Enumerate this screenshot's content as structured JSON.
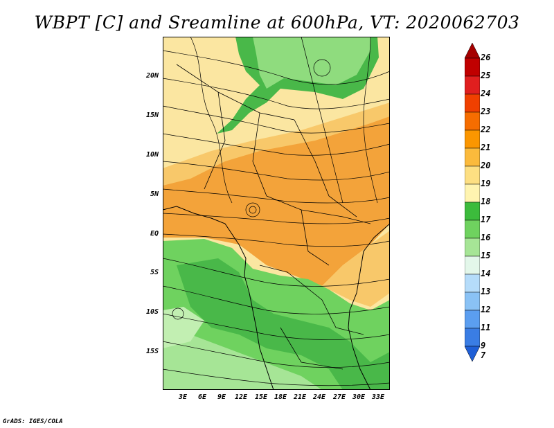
{
  "title": "WBPT [C] and Sreamline at 600hPa, VT: 2020062703",
  "footer": "GrADS: IGES/COLA",
  "lat_labels": [
    "20N",
    "15N",
    "10N",
    "5N",
    "EQ",
    "5S",
    "10S",
    "15S"
  ],
  "lon_labels": [
    "3E",
    "6E",
    "9E",
    "12E",
    "15E",
    "18E",
    "21E",
    "24E",
    "27E",
    "30E",
    "33E"
  ],
  "colorbar": {
    "levels": [
      "26",
      "25",
      "24",
      "23",
      "22",
      "21",
      "20",
      "19",
      "18",
      "17",
      "16",
      "15",
      "14",
      "13",
      "12",
      "11",
      "9",
      "7"
    ],
    "colors": [
      "#a50000",
      "#c00000",
      "#e01f1f",
      "#f04000",
      "#f66d00",
      "#fb9600",
      "#fbba3c",
      "#fddf82",
      "#fff4b0",
      "#3cbb3c",
      "#6fd25f",
      "#a6e596",
      "#e3f7ea",
      "#b5dcfa",
      "#8ac2f5",
      "#5b9ef0",
      "#3a7de4",
      "#1f5fd6"
    ]
  },
  "map": {
    "colors": {
      "orange": "#f3a33a",
      "light_orange": "#f8c86a",
      "pale_yellow": "#fbe6a1",
      "green": "#49b849",
      "light_green": "#8fdc7e",
      "pale_green": "#c2efb2"
    }
  }
}
